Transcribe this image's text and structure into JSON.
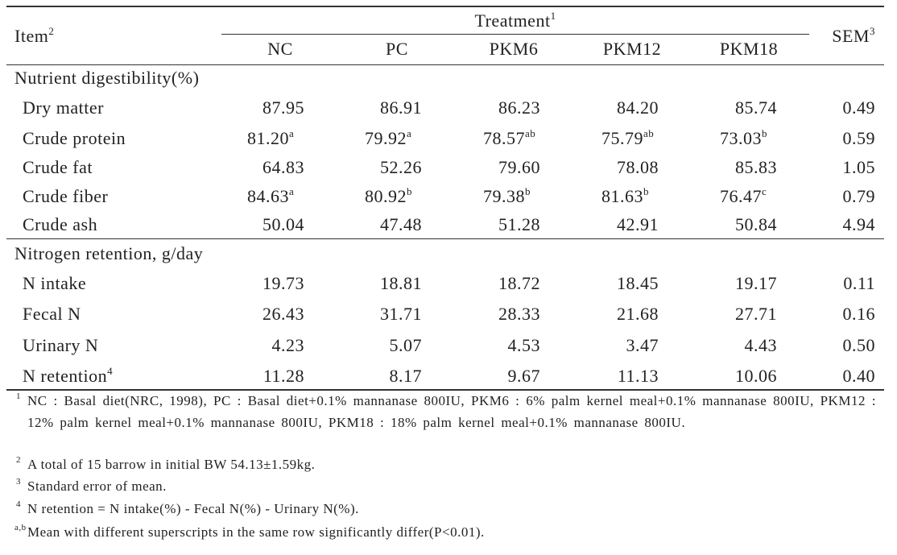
{
  "header": {
    "item": "Item",
    "item_sup": "2",
    "treatment": "Treatment",
    "treatment_sup": "1",
    "sem": "SEM",
    "sem_sup": "3",
    "columns": [
      "NC",
      "PC",
      "PKM6",
      "PKM12",
      "PKM18"
    ]
  },
  "sections": [
    {
      "title": "Nutrient digestibility(%)",
      "rows": [
        {
          "label": "Dry matter",
          "cells": [
            "87.95",
            "86.91",
            "86.23",
            "84.20",
            "85.74"
          ],
          "sem": "0.49"
        },
        {
          "label": "Crude protein",
          "cells": [
            {
              "text": "81.20",
              "sup": "a"
            },
            {
              "text": "79.92",
              "sup": "a"
            },
            {
              "text": "78.57",
              "sup": "ab"
            },
            {
              "text": "75.79",
              "sup": "ab"
            },
            {
              "text": "73.03",
              "sup": "b"
            }
          ],
          "sem": "0.59"
        },
        {
          "label": "Crude fat",
          "cells": [
            "64.83",
            "52.26",
            "79.60",
            "78.08",
            "85.83"
          ],
          "sem": "1.05"
        },
        {
          "label": "Crude fiber",
          "cells": [
            {
              "text": "84.63",
              "sup": "a"
            },
            {
              "text": "80.92",
              "sup": "b"
            },
            {
              "text": "79.38",
              "sup": "b"
            },
            {
              "text": "81.63",
              "sup": "b"
            },
            {
              "text": "76.47",
              "sup": "c"
            }
          ],
          "sem": "0.79"
        },
        {
          "label": "Crude ash",
          "cells": [
            "50.04",
            "47.48",
            "51.28",
            "42.91",
            "50.84"
          ],
          "sem": "4.94"
        }
      ]
    },
    {
      "title": "Nitrogen retention, g/day",
      "rows": [
        {
          "label": "N intake",
          "cells": [
            "19.73",
            "18.81",
            "18.72",
            "18.45",
            "19.17"
          ],
          "sem": "0.11"
        },
        {
          "label": "Fecal N",
          "cells": [
            "26.43",
            "31.71",
            "28.33",
            "21.68",
            "27.71"
          ],
          "sem": "0.16"
        },
        {
          "label": "Urinary N",
          "cells": [
            "4.23",
            "5.07",
            "4.53",
            "3.47",
            "4.43"
          ],
          "sem": "0.50"
        },
        {
          "label": {
            "text": "N retention",
            "sup": "4"
          },
          "cells": [
            "11.28",
            "8.17",
            "9.67",
            "11.13",
            "10.06"
          ],
          "sem": "0.40"
        }
      ]
    }
  ],
  "footnotes": [
    {
      "mark": "1",
      "text": "NC : Basal diet(NRC, 1998), PC : Basal diet+0.1% mannanase 800IU, PKM6 : 6% palm kernel meal+0.1% mannanase 800IU, PKM12 : 12% palm kernel meal+0.1% mannanase 800IU, PKM18 : 18% palm kernel meal+0.1% mannanase 800IU."
    },
    {
      "mark": "2",
      "text": "A total of 15 barrow in initial BW 54.13±1.59kg."
    },
    {
      "mark": "3",
      "text": "Standard error of mean."
    },
    {
      "mark": "4",
      "text": "N retention = N intake(%) - Fecal N(%) - Urinary N(%)."
    },
    {
      "mark": "a,b",
      "text": "Mean with different superscripts in the same row significantly differ(P<0.01)."
    }
  ]
}
